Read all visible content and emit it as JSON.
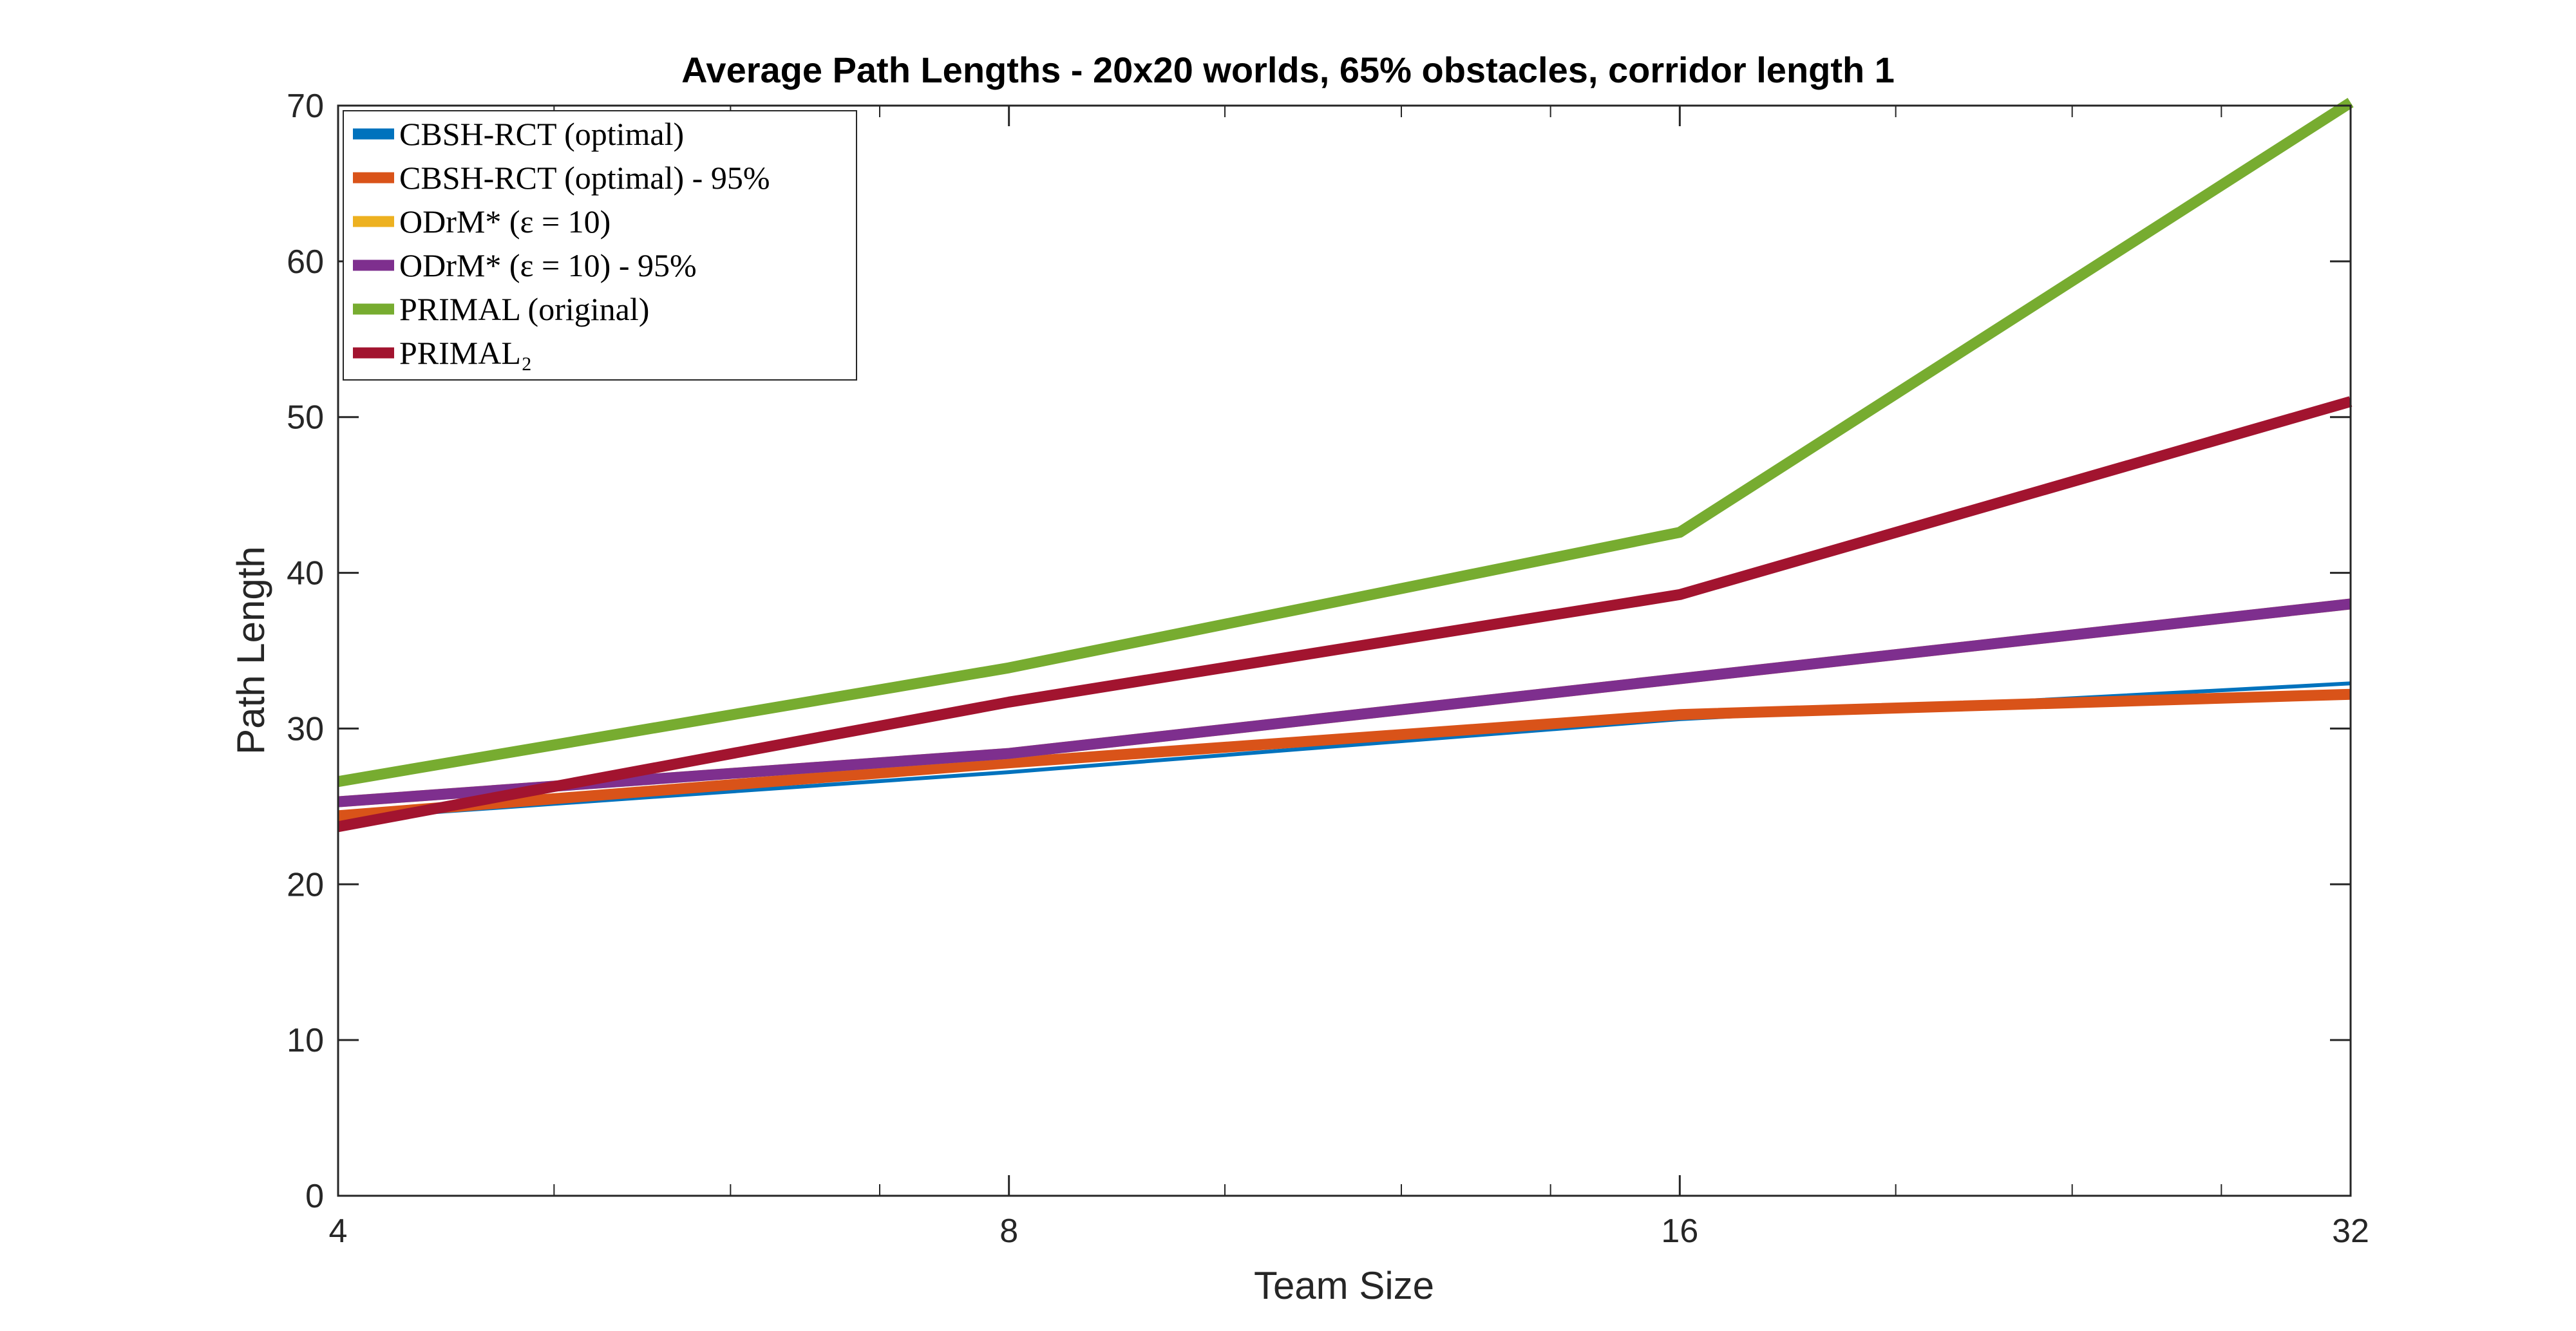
{
  "chart_data": {
    "type": "line",
    "title": "Average Path Lengths - 20x20 worlds, 65% obstacles, corridor length 1",
    "xlabel": "Team Size",
    "ylabel": "Path Length",
    "x_scale": "log2",
    "x": [
      4,
      8,
      16,
      32
    ],
    "xticks": [
      "4",
      "8",
      "16",
      "32"
    ],
    "ylim": [
      0,
      70
    ],
    "yticks": [
      "0",
      "10",
      "20",
      "30",
      "40",
      "50",
      "60",
      "70"
    ],
    "grid": false,
    "legend_position": "top-left",
    "series": [
      {
        "name": "CBSH-RCT (optimal)",
        "color": "#0072BD",
        "values": [
          24.2,
          27.2,
          30.6,
          32.9
        ],
        "width": "thin"
      },
      {
        "name": "CBSH-RCT (optimal) - 95%",
        "color": "#D95319",
        "values": [
          24.4,
          27.8,
          30.9,
          32.2
        ],
        "width": "thick"
      },
      {
        "name": "ODrM* (ε = 10)",
        "color": "#EDB120",
        "values": [
          25.3,
          28.4,
          33.2,
          38.0
        ],
        "width": "thick"
      },
      {
        "name": "ODrM* (ε = 10) - 95%",
        "color": "#7E2F8E",
        "values": [
          25.3,
          28.4,
          33.2,
          38.0
        ],
        "width": "thick"
      },
      {
        "name": "PRIMAL (original)",
        "color": "#77AC30",
        "values": [
          26.6,
          33.9,
          42.6,
          70.2
        ],
        "width": "thick"
      },
      {
        "name": "PRIMAL₂",
        "color": "#A2142F",
        "values": [
          23.7,
          31.7,
          38.6,
          51.0
        ],
        "width": "thick"
      }
    ]
  }
}
